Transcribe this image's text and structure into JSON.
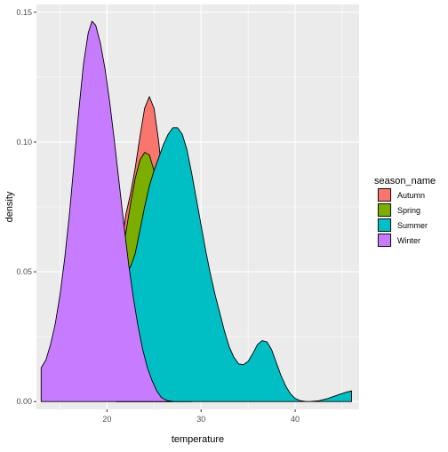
{
  "chart_data": {
    "type": "area",
    "title": "",
    "xlabel": "temperature",
    "ylabel": "density",
    "xlim": [
      12.5,
      46.8
    ],
    "ylim": [
      -0.003,
      0.153
    ],
    "x_ticks": [
      20,
      30,
      40
    ],
    "y_ticks": [
      0.0,
      0.05,
      0.1,
      0.15
    ],
    "x_tick_labels": [
      "20",
      "30",
      "40"
    ],
    "y_tick_labels": [
      "0.00",
      "0.05",
      "0.10",
      "0.15"
    ],
    "grid": true,
    "legend": {
      "title": "season_name",
      "position": "right"
    },
    "series": [
      {
        "name": "Autumn",
        "color": "#F8766D",
        "points": [
          [
            21.0,
            0
          ],
          [
            21.5,
            0.06
          ],
          [
            22.0,
            0.072
          ],
          [
            22.5,
            0.08
          ],
          [
            23.0,
            0.09
          ],
          [
            23.5,
            0.102
          ],
          [
            24.0,
            0.113
          ],
          [
            24.5,
            0.1175
          ],
          [
            25.0,
            0.113
          ],
          [
            25.5,
            0.1
          ],
          [
            26.0,
            0.082
          ],
          [
            26.5,
            0.062
          ],
          [
            27.0,
            0.042
          ],
          [
            27.5,
            0.024
          ],
          [
            28.0,
            0.012
          ],
          [
            28.5,
            0.005
          ],
          [
            29.0,
            0
          ]
        ]
      },
      {
        "name": "Spring",
        "color": "#7CAE00",
        "points": [
          [
            21.0,
            0
          ],
          [
            21.5,
            0.055
          ],
          [
            22.0,
            0.065
          ],
          [
            22.5,
            0.076
          ],
          [
            23.0,
            0.086
          ],
          [
            23.5,
            0.093
          ],
          [
            24.0,
            0.096
          ],
          [
            24.5,
            0.095
          ],
          [
            25.0,
            0.089
          ],
          [
            25.5,
            0.078
          ],
          [
            26.0,
            0.063
          ],
          [
            26.5,
            0.046
          ],
          [
            27.0,
            0.03
          ],
          [
            27.5,
            0.017
          ],
          [
            28.0,
            0.008
          ],
          [
            28.5,
            0.003
          ],
          [
            29.0,
            0
          ]
        ]
      },
      {
        "name": "Summer",
        "color": "#00BFC4",
        "points": [
          [
            21.0,
            0
          ],
          [
            21.5,
            0.045
          ],
          [
            22.0,
            0.049
          ],
          [
            22.5,
            0.052
          ],
          [
            23.0,
            0.057
          ],
          [
            23.5,
            0.066
          ],
          [
            24.0,
            0.075
          ],
          [
            24.5,
            0.083
          ],
          [
            25.0,
            0.089
          ],
          [
            25.5,
            0.094
          ],
          [
            26.0,
            0.099
          ],
          [
            26.5,
            0.103
          ],
          [
            27.0,
            0.1055
          ],
          [
            27.5,
            0.1055
          ],
          [
            28.0,
            0.103
          ],
          [
            28.5,
            0.097
          ],
          [
            29.0,
            0.088
          ],
          [
            29.5,
            0.078
          ],
          [
            30.0,
            0.068
          ],
          [
            30.5,
            0.058
          ],
          [
            31.0,
            0.049
          ],
          [
            31.5,
            0.041
          ],
          [
            32.0,
            0.034
          ],
          [
            32.5,
            0.027
          ],
          [
            33.0,
            0.021
          ],
          [
            33.5,
            0.017
          ],
          [
            34.0,
            0.0145
          ],
          [
            34.5,
            0.0142
          ],
          [
            35.0,
            0.0155
          ],
          [
            35.5,
            0.0185
          ],
          [
            36.0,
            0.022
          ],
          [
            36.5,
            0.0235
          ],
          [
            37.0,
            0.023
          ],
          [
            37.5,
            0.02
          ],
          [
            38.0,
            0.015
          ],
          [
            38.5,
            0.01
          ],
          [
            39.0,
            0.006
          ],
          [
            39.5,
            0.003
          ],
          [
            40.0,
            0.0012
          ],
          [
            40.5,
            0.0004
          ],
          [
            41.0,
            0.0001
          ],
          [
            41.5,
            0
          ],
          [
            42.5,
            0.0003
          ],
          [
            43.5,
            0.0012
          ],
          [
            44.5,
            0.0025
          ],
          [
            45.5,
            0.0037
          ],
          [
            46.0,
            0.0041
          ],
          [
            46.0,
            0
          ]
        ]
      },
      {
        "name": "Winter",
        "color": "#C77CFF",
        "points": [
          [
            13.0,
            0
          ],
          [
            13.0,
            0.013
          ],
          [
            13.5,
            0.016
          ],
          [
            14.0,
            0.022
          ],
          [
            14.5,
            0.03
          ],
          [
            15.0,
            0.041
          ],
          [
            15.5,
            0.055
          ],
          [
            16.0,
            0.072
          ],
          [
            16.5,
            0.092
          ],
          [
            17.0,
            0.112
          ],
          [
            17.5,
            0.13
          ],
          [
            18.0,
            0.142
          ],
          [
            18.4,
            0.1465
          ],
          [
            18.8,
            0.145
          ],
          [
            19.3,
            0.138
          ],
          [
            19.8,
            0.128
          ],
          [
            20.3,
            0.115
          ],
          [
            20.8,
            0.1
          ],
          [
            21.3,
            0.084
          ],
          [
            21.8,
            0.068
          ],
          [
            22.3,
            0.053
          ],
          [
            22.8,
            0.04
          ],
          [
            23.3,
            0.029
          ],
          [
            23.8,
            0.02
          ],
          [
            24.3,
            0.013
          ],
          [
            24.8,
            0.008
          ],
          [
            25.3,
            0.004
          ],
          [
            25.8,
            0.0015
          ],
          [
            26.4,
            0.0004
          ],
          [
            27.0,
            0
          ]
        ]
      }
    ]
  }
}
